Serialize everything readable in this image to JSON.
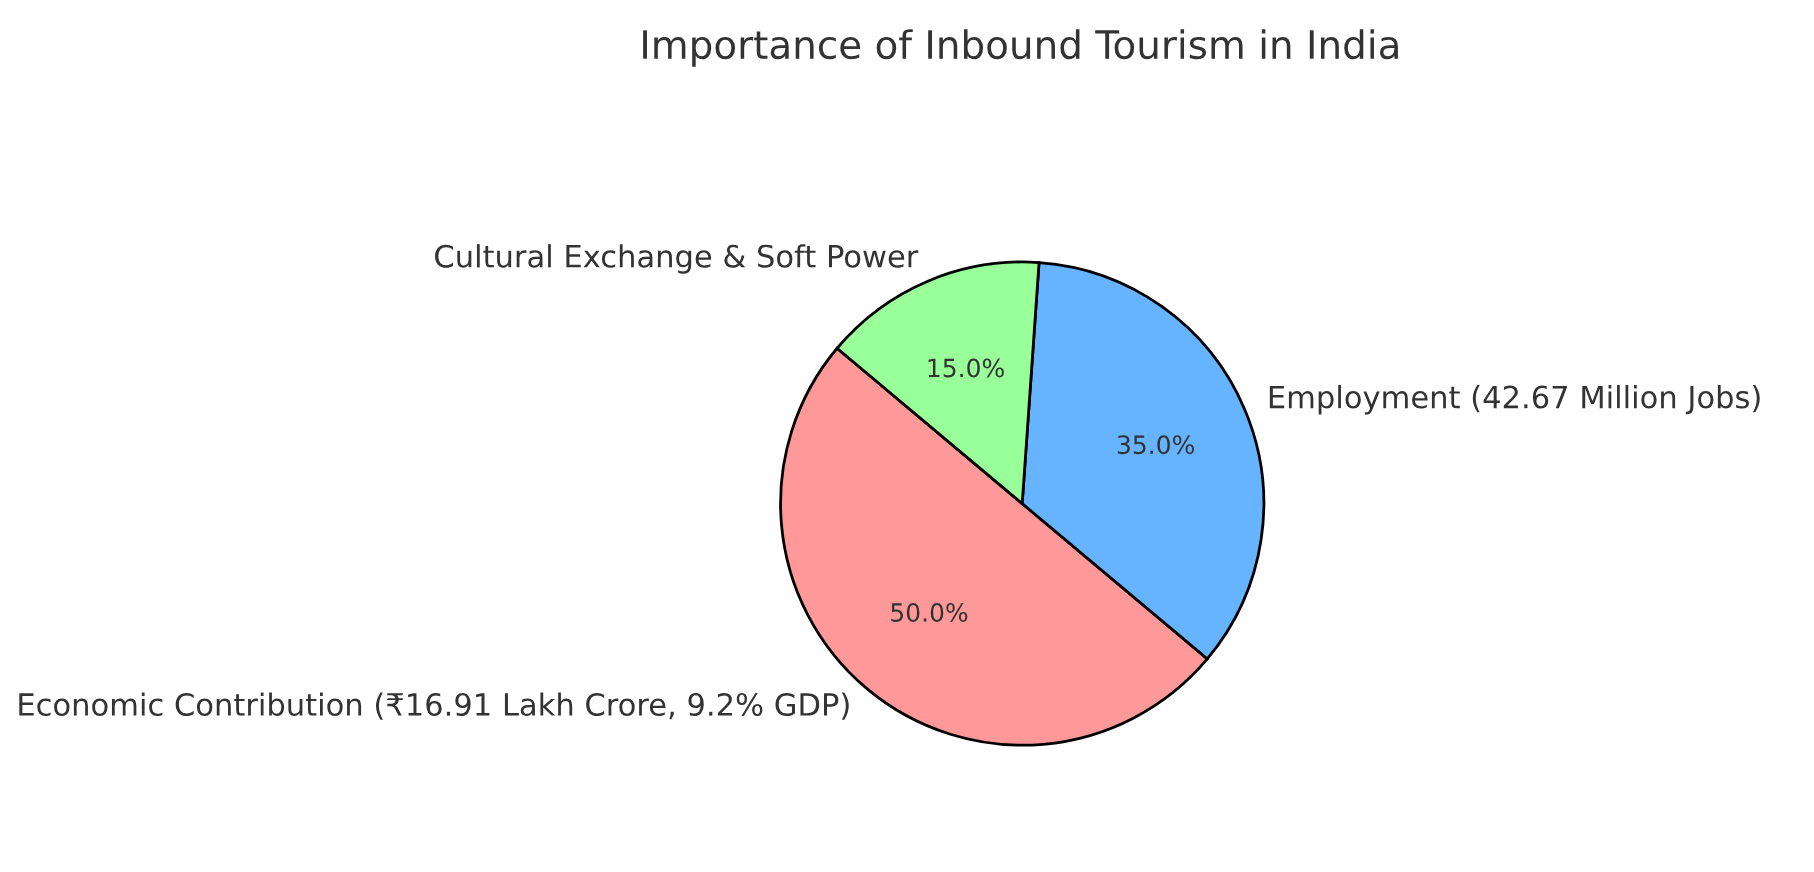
{
  "chart_data": {
    "type": "pie",
    "title": "Importance of Inbound Tourism in India",
    "categories": [
      "Economic Contribution (₹16.91 Lakh Crore, 9.2% GDP)",
      "Employment (42.67 Million Jobs)",
      "Cultural Exchange & Soft Power"
    ],
    "values": [
      50,
      35,
      15
    ],
    "colors": [
      "#ff9999",
      "#66b3ff",
      "#99ff99"
    ],
    "value_labels": [
      "50.0%",
      "35.0%",
      "15.0%"
    ]
  }
}
